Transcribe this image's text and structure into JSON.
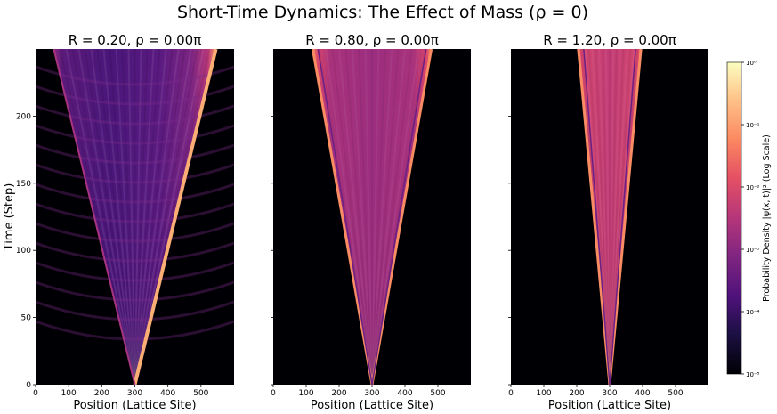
{
  "figure": {
    "suptitle": "Short-Time Dynamics: The Effect of Mass (ρ = 0)"
  },
  "colorbar": {
    "label": "Probability Density |ψ(x, t)|² (Log Scale)",
    "ticks": [
      "10⁻⁵",
      "10⁻⁴",
      "10⁻³",
      "10⁻²",
      "10⁻¹",
      "10⁰"
    ],
    "range_log10": [
      -5,
      0
    ],
    "colormap": "magma"
  },
  "chart_data": [
    {
      "type": "heatmap",
      "title": "R = 0.20, ρ = 0.00π",
      "xlabel": "Position (Lattice Site)",
      "ylabel": "Time (Step)",
      "xlim": [
        0,
        600
      ],
      "ylim": [
        0,
        250
      ],
      "xticks": [
        0,
        100,
        200,
        300,
        400,
        500
      ],
      "yticks": [
        0,
        50,
        100,
        150,
        200
      ],
      "origin_site": 300,
      "cone_edges_at_t250": {
        "left": 55,
        "right": 545
      },
      "dominant_edge": "right"
    },
    {
      "type": "heatmap",
      "title": "R = 0.80, ρ = 0.00π",
      "xlabel": "Position (Lattice Site)",
      "ylabel": "",
      "xlim": [
        0,
        600
      ],
      "ylim": [
        0,
        250
      ],
      "xticks": [
        0,
        100,
        200,
        300,
        400,
        500
      ],
      "yticks": [],
      "origin_site": 300,
      "cone_edges_at_t250": {
        "left": 120,
        "right": 480
      },
      "dominant_edge": "both"
    },
    {
      "type": "heatmap",
      "title": "R = 1.20, ρ = 0.00π",
      "xlabel": "Position (Lattice Site)",
      "ylabel": "",
      "xlim": [
        0,
        600
      ],
      "ylim": [
        0,
        250
      ],
      "xticks": [
        0,
        100,
        200,
        300,
        400,
        500
      ],
      "yticks": [],
      "origin_site": 300,
      "cone_edges_at_t250": {
        "left": 205,
        "right": 395
      },
      "dominant_edge": "both"
    }
  ]
}
